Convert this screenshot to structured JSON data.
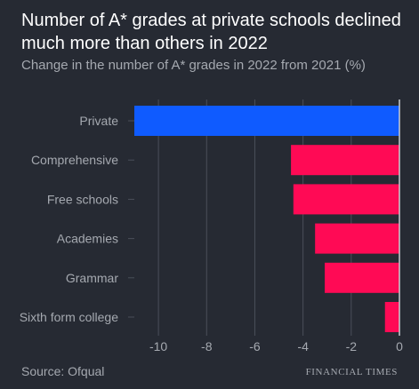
{
  "header": {
    "title": "Number of A* grades at private schools declined much more than others in 2022",
    "subtitle": "Change in the number of A* grades in 2022 from 2021 (%)"
  },
  "footer": {
    "source": "Source: Ofqual",
    "brand": "FINANCIAL TIMES"
  },
  "colors": {
    "background": "#262a33",
    "highlight_bar": "#0f5bff",
    "other_bar": "#ff0a55",
    "grid": "#4a4f5a",
    "text": "#a5a9b0"
  },
  "chart_data": {
    "type": "bar",
    "orientation": "horizontal",
    "categories": [
      "Private",
      "Comprehensive",
      "Free schools",
      "Academies",
      "Grammar",
      "Sixth form college"
    ],
    "values": [
      -11.0,
      -4.5,
      -4.4,
      -3.5,
      -3.1,
      -0.6
    ],
    "bar_colors": [
      "#0f5bff",
      "#ff0a55",
      "#ff0a55",
      "#ff0a55",
      "#ff0a55",
      "#ff0a55"
    ],
    "x_ticks": [
      -10,
      -8,
      -6,
      -4,
      -2,
      0
    ],
    "xlim": [
      -11,
      0
    ],
    "grid": true
  }
}
